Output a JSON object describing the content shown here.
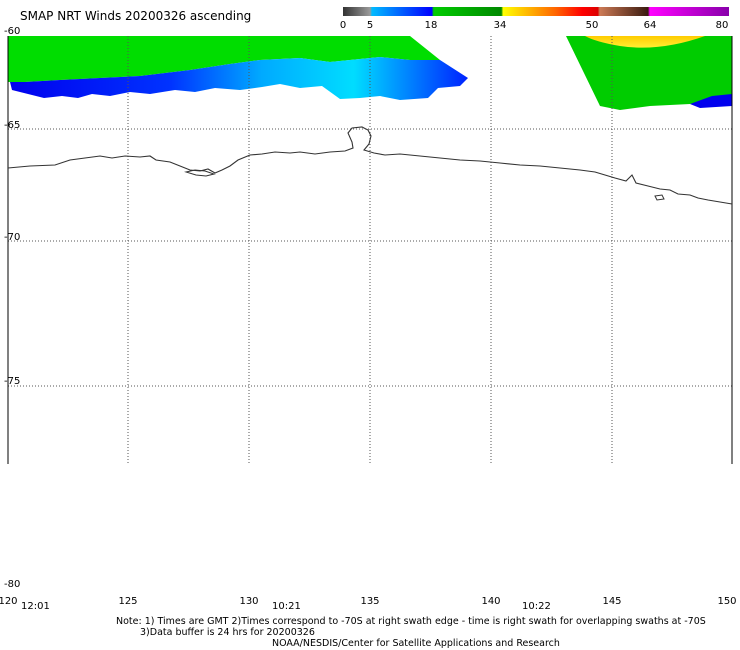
{
  "title": "SMAP NRT Winds 20200326 ascending",
  "colorbar": {
    "labels": [
      "0",
      "5",
      "18",
      "34",
      "50",
      "64",
      "80"
    ],
    "colors": [
      "#555555",
      "#0066ff",
      "#00bb00",
      "#ffcc00",
      "#ff0000",
      "#8b4513",
      "#cc00cc"
    ]
  },
  "latitude_labels": [
    "-60",
    "-65",
    "-70",
    "-75",
    "-80"
  ],
  "longitude_labels": [
    "120",
    "125",
    "130",
    "135",
    "140",
    "145",
    "150"
  ],
  "swath_times": [
    "12:01",
    "10:21",
    "10:22"
  ],
  "notes": {
    "line1": "Note: 1) Times are GMT 2)Times correspond to -70S at right swath edge - time is right swath for overlapping swaths at -70S",
    "line2": "3)Data buffer is 24 hrs for 20200326",
    "line3": "NOAA/NESDIS/Center for Satellite Applications and Research"
  }
}
